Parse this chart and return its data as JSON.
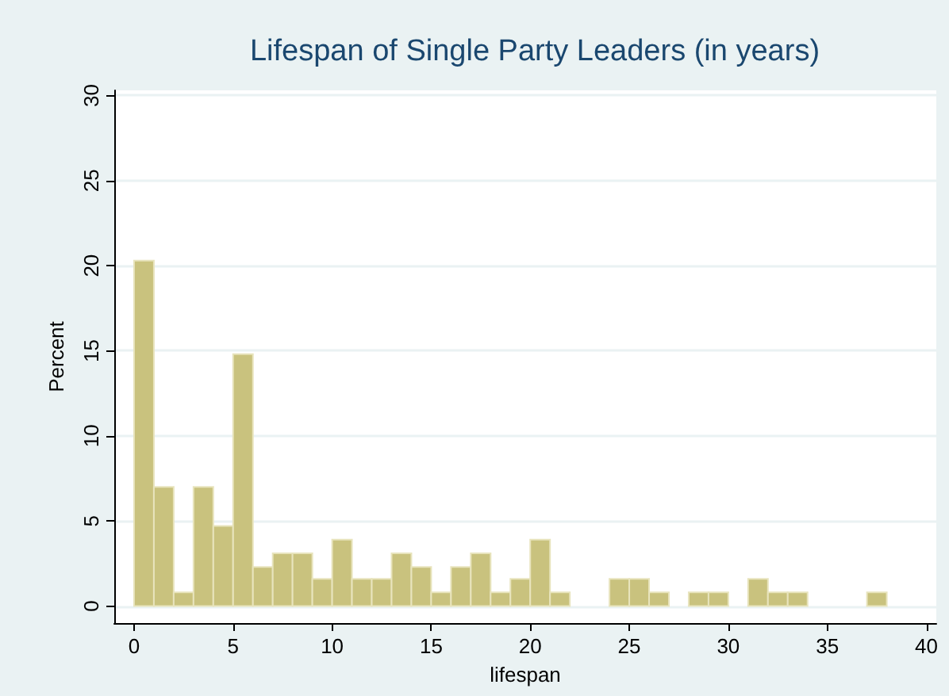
{
  "chart_data": {
    "type": "histogram",
    "title": "Lifespan of Single Party Leaders (in years)",
    "xlabel": "lifespan",
    "ylabel": "Percent",
    "bins": [
      0,
      1,
      2,
      3,
      4,
      5,
      6,
      7,
      8,
      9,
      10,
      11,
      12,
      13,
      14,
      15,
      16,
      17,
      18,
      19,
      20,
      21,
      22,
      23,
      24,
      25,
      26,
      27,
      28,
      29,
      30,
      31,
      32,
      33,
      34,
      35,
      36,
      37,
      38
    ],
    "values": [
      20.3,
      7.0,
      0.8,
      7.0,
      4.7,
      14.8,
      2.3,
      3.1,
      3.1,
      1.6,
      3.9,
      1.6,
      1.6,
      3.1,
      2.3,
      0.8,
      2.3,
      3.1,
      0.8,
      1.6,
      3.9,
      0.8,
      0,
      0,
      1.6,
      1.6,
      0.8,
      0,
      0.8,
      0.8,
      0,
      1.6,
      0.8,
      0.8,
      0,
      0,
      0,
      0.8
    ],
    "color": "#c9c27e",
    "xlim": [
      -1,
      40.5
    ],
    "xticks": [
      0,
      5,
      10,
      15,
      20,
      25,
      30,
      35,
      40
    ],
    "ylim": [
      -1,
      30.3
    ],
    "yticks": [
      0,
      5,
      10,
      15,
      20,
      25,
      30
    ],
    "grid": "y"
  }
}
